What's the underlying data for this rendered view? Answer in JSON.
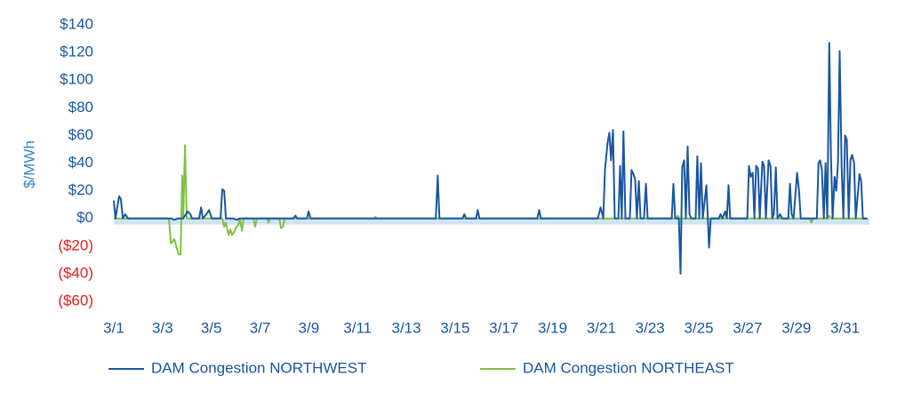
{
  "chart_data": {
    "type": "line",
    "y_label": "$/MWh",
    "xlim": [
      1,
      32
    ],
    "xticks": [
      {
        "value": 1,
        "label": "3/1"
      },
      {
        "value": 3,
        "label": "3/3"
      },
      {
        "value": 5,
        "label": "3/5"
      },
      {
        "value": 7,
        "label": "3/7"
      },
      {
        "value": 9,
        "label": "3/9"
      },
      {
        "value": 11,
        "label": "3/11"
      },
      {
        "value": 13,
        "label": "3/13"
      },
      {
        "value": 15,
        "label": "3/15"
      },
      {
        "value": 17,
        "label": "3/17"
      },
      {
        "value": 19,
        "label": "3/19"
      },
      {
        "value": 21,
        "label": "3/21"
      },
      {
        "value": 23,
        "label": "3/23"
      },
      {
        "value": 25,
        "label": "3/25"
      },
      {
        "value": 27,
        "label": "3/27"
      },
      {
        "value": 29,
        "label": "3/29"
      },
      {
        "value": 31,
        "label": "3/31"
      }
    ],
    "ylim": [
      -60,
      140
    ],
    "yticks": [
      {
        "value": 140,
        "label": "$140"
      },
      {
        "value": 120,
        "label": "$120"
      },
      {
        "value": 100,
        "label": "$100"
      },
      {
        "value": 80,
        "label": "$80"
      },
      {
        "value": 60,
        "label": "$60"
      },
      {
        "value": 40,
        "label": "$40"
      },
      {
        "value": 20,
        "label": "$20"
      },
      {
        "value": 0,
        "label": "$0"
      },
      {
        "value": -20,
        "label": "($20)"
      },
      {
        "value": -40,
        "label": "($40)"
      },
      {
        "value": -60,
        "label": "($60)"
      }
    ],
    "series": [
      {
        "name": "DAM Congestion NORTHWEST",
        "color": "#1a56a0",
        "x": [
          1.0,
          1.07,
          1.22,
          1.29,
          1.37,
          1.47,
          1.58,
          3.34,
          3.48,
          3.63,
          3.85,
          4.03,
          4.14,
          4.21,
          4.5,
          4.58,
          4.65,
          4.8,
          4.91,
          5.02,
          5.38,
          5.45,
          5.53,
          5.6,
          5.89,
          6.04,
          6.18,
          8.37,
          8.45,
          8.52,
          8.92,
          8.99,
          9.07,
          14.21,
          14.29,
          14.36,
          15.31,
          15.38,
          15.45,
          15.86,
          15.93,
          16.0,
          18.37,
          18.45,
          18.52,
          20.86,
          20.97,
          21.08,
          21.15,
          21.26,
          21.33,
          21.4,
          21.48,
          21.55,
          21.7,
          21.77,
          21.84,
          21.91,
          21.99,
          22.17,
          22.24,
          22.32,
          22.39,
          22.46,
          22.54,
          22.61,
          22.75,
          22.83,
          22.9,
          23.89,
          23.96,
          24.03,
          24.18,
          24.25,
          24.32,
          24.4,
          24.47,
          24.54,
          24.62,
          24.69,
          24.87,
          24.94,
          25.02,
          25.09,
          25.16,
          25.31,
          25.42,
          25.49,
          25.82,
          25.89,
          25.97,
          26.08,
          26.15,
          26.22,
          26.29,
          26.99,
          27.06,
          27.13,
          27.21,
          27.28,
          27.35,
          27.43,
          27.5,
          27.61,
          27.68,
          27.75,
          27.86,
          27.94,
          28.01,
          28.08,
          28.16,
          28.23,
          28.34,
          28.41,
          28.67,
          28.74,
          28.81,
          28.89,
          29.03,
          29.11,
          29.18,
          29.84,
          29.91,
          29.98,
          30.05,
          30.13,
          30.2,
          30.27,
          30.35,
          30.42,
          30.49,
          30.57,
          30.64,
          30.71,
          30.78,
          30.86,
          30.93,
          31.0,
          31.07,
          31.15,
          31.22,
          31.29,
          31.37,
          31.44,
          31.59,
          31.66,
          31.73,
          31.92
        ],
        "values": [
          13,
          0,
          16,
          14,
          0,
          3,
          0,
          0,
          -1,
          0,
          0,
          5,
          3,
          0,
          0,
          8,
          0,
          3,
          6,
          0,
          0,
          21,
          20,
          0,
          0,
          -1,
          0,
          0,
          2,
          0,
          0,
          5,
          0,
          0,
          31,
          0,
          0,
          3,
          0,
          0,
          6,
          0,
          0,
          6,
          0,
          0,
          8,
          0,
          35,
          55,
          62,
          42,
          64,
          0,
          0,
          38,
          0,
          63,
          0,
          0,
          35,
          32,
          28,
          0,
          27,
          0,
          0,
          25,
          0,
          0,
          25,
          0,
          0,
          -40,
          37,
          42,
          0,
          52,
          3,
          0,
          0,
          45,
          0,
          40,
          0,
          24,
          -21,
          0,
          0,
          3,
          0,
          5,
          0,
          24,
          0,
          0,
          38,
          30,
          33,
          0,
          38,
          36,
          0,
          41,
          38,
          0,
          42,
          38,
          0,
          3,
          37,
          0,
          3,
          0,
          0,
          25,
          3,
          0,
          33,
          20,
          0,
          0,
          40,
          42,
          35,
          0,
          40,
          0,
          127,
          45,
          0,
          30,
          20,
          40,
          121,
          38,
          0,
          60,
          57,
          0,
          42,
          46,
          40,
          0,
          32,
          27,
          0,
          0
        ]
      },
      {
        "name": "DAM Congestion NORTHEAST",
        "color": "#7dc242",
        "x": [
          1.0,
          3.26,
          3.34,
          3.41,
          3.48,
          3.56,
          3.66,
          3.74,
          3.81,
          3.85,
          3.92,
          3.99,
          5.45,
          5.53,
          5.6,
          5.71,
          5.78,
          5.85,
          5.93,
          6.04,
          6.11,
          6.18,
          6.26,
          6.33,
          6.73,
          6.8,
          6.88,
          7.28,
          7.35,
          7.42,
          7.79,
          7.86,
          7.94,
          8.01,
          11.66,
          11.73,
          11.8,
          24.07,
          24.14,
          24.21,
          29.54,
          29.62,
          29.69,
          30.27,
          30.35,
          30.42,
          31.92
        ],
        "values": [
          0,
          0,
          -18,
          -17,
          -15,
          -20,
          -26,
          -26,
          31,
          0,
          53,
          0,
          0,
          -6,
          -3,
          -12,
          -8,
          -12,
          -10,
          -6,
          -5,
          0,
          -9,
          0,
          0,
          -6,
          0,
          0,
          -3,
          0,
          0,
          -7,
          -6,
          0,
          0,
          1,
          0,
          0,
          2,
          0,
          0,
          -3,
          0,
          0,
          2,
          0,
          0
        ]
      }
    ]
  }
}
